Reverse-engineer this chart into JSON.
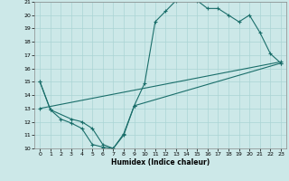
{
  "xlabel": "Humidex (Indice chaleur)",
  "bg_color": "#cce8e8",
  "grid_color": "#aad4d4",
  "line_color": "#1a6e6a",
  "xlim": [
    -0.5,
    23.5
  ],
  "ylim": [
    10,
    21
  ],
  "xticks": [
    0,
    1,
    2,
    3,
    4,
    5,
    6,
    7,
    8,
    9,
    10,
    11,
    12,
    13,
    14,
    15,
    16,
    17,
    18,
    19,
    20,
    21,
    22,
    23
  ],
  "yticks": [
    10,
    11,
    12,
    13,
    14,
    15,
    16,
    17,
    18,
    19,
    20,
    21
  ],
  "line1_x": [
    0,
    1,
    2,
    3,
    4,
    5,
    6,
    7,
    8,
    9,
    10,
    11,
    12,
    13,
    14,
    15,
    16,
    17,
    18,
    19,
    20,
    21,
    22,
    23
  ],
  "line1_y": [
    15.0,
    12.9,
    12.2,
    11.9,
    11.5,
    10.3,
    10.1,
    10.0,
    11.1,
    13.2,
    14.9,
    19.5,
    20.3,
    21.1,
    21.2,
    21.1,
    20.5,
    20.5,
    20.0,
    19.5,
    20.0,
    18.7,
    17.1,
    16.4
  ],
  "line2_x": [
    0,
    1,
    3,
    4,
    5,
    6,
    7,
    8,
    9,
    23
  ],
  "line2_y": [
    15.0,
    12.9,
    12.2,
    12.0,
    11.5,
    10.3,
    10.0,
    11.0,
    13.2,
    16.4
  ],
  "line3_x": [
    0,
    23
  ],
  "line3_y": [
    13.0,
    16.5
  ],
  "marker": "+",
  "markersize": 3,
  "lw": 0.8,
  "tick_fontsize": 4.5,
  "xlabel_fontsize": 5.5
}
